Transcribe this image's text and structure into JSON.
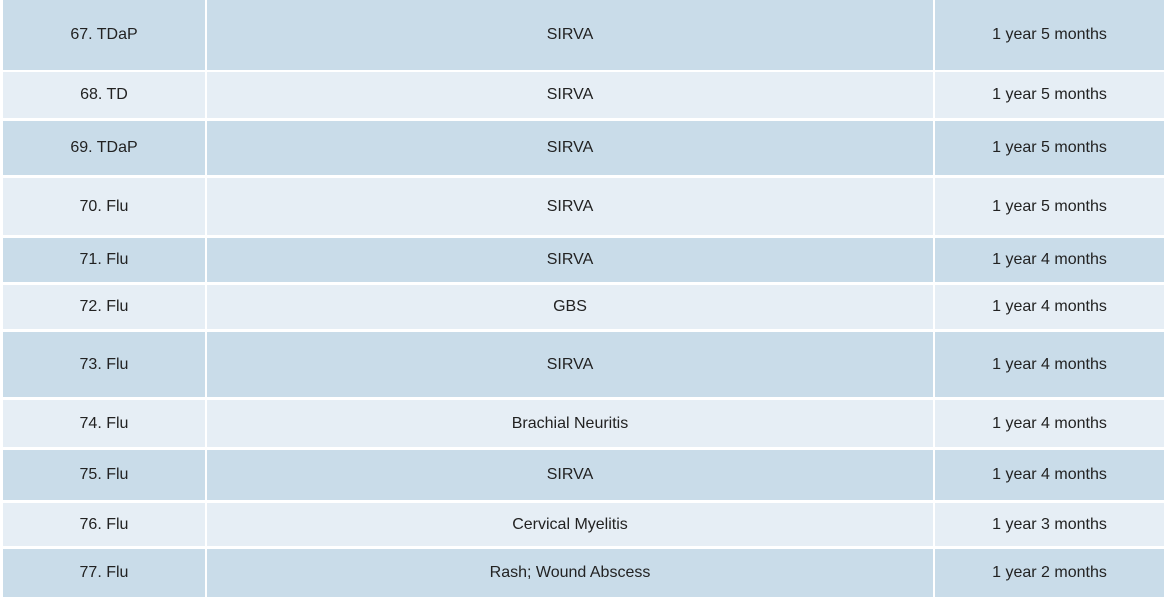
{
  "table": {
    "rows": [
      [
        "67. TDaP",
        "SIRVA",
        "1 year 5 months"
      ],
      [
        "68. TD",
        "SIRVA",
        "1 year 5 months"
      ],
      [
        "69. TDaP",
        "SIRVA",
        "1 year 5 months"
      ],
      [
        "70. Flu",
        "SIRVA",
        "1 year 5 months"
      ],
      [
        "71. Flu",
        "SIRVA",
        "1 year 4 months"
      ],
      [
        "72. Flu",
        "GBS",
        "1 year 4 months"
      ],
      [
        "73. Flu",
        "SIRVA",
        "1 year 4 months"
      ],
      [
        "74. Flu",
        "Brachial Neuritis",
        "1 year 4 months"
      ],
      [
        "75. Flu",
        "SIRVA",
        "1 year 4 months"
      ],
      [
        "76. Flu",
        "Cervical Myelitis",
        "1 year 3 months"
      ],
      [
        "77. Flu",
        "Rash; Wound Abscess",
        "1 year 2 months"
      ]
    ]
  }
}
